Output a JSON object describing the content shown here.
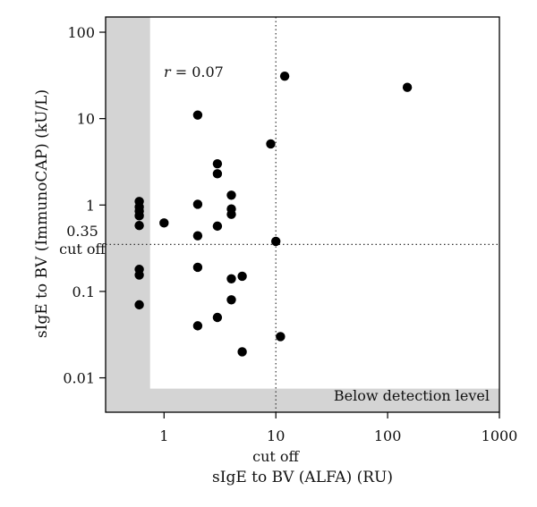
{
  "chart_data": {
    "type": "scatter",
    "x_scale": "log",
    "y_scale": "log",
    "xlim": [
      0.3,
      1000
    ],
    "ylim": [
      0.004,
      150
    ],
    "x_ticks": [
      {
        "value": 1,
        "label": "1"
      },
      {
        "value": 10,
        "label": "10"
      },
      {
        "value": 100,
        "label": "100"
      },
      {
        "value": 1000,
        "label": "1000"
      }
    ],
    "y_ticks": [
      {
        "value": 0.01,
        "label": "0.01"
      },
      {
        "value": 0.1,
        "label": "0.1"
      },
      {
        "value": 1,
        "label": "1"
      },
      {
        "value": 10,
        "label": "10"
      },
      {
        "value": 100,
        "label": "100"
      }
    ],
    "xlabel": "sIgE to BV (ALFA) (RU)",
    "ylabel": "sIgE to BV (ImmunoCAP) (kU/L)",
    "annotations": {
      "r_label": "r = 0.07",
      "x_cutoff_label": "cut off",
      "y_cutoff_value_label": "0.35",
      "y_cutoff_label": "cut off",
      "below_detection": "Below detection level"
    },
    "reference_lines": {
      "x_cutoff": 10,
      "y_cutoff": 0.35
    },
    "detection_region": {
      "x_below": 0.75,
      "y_below": 0.0075
    },
    "grid": false,
    "legend": "none",
    "colors": {
      "points": "#000000",
      "shade": "#d4d4d4",
      "frame": "#000000"
    },
    "points": [
      {
        "x": 0.6,
        "y": 1.1
      },
      {
        "x": 0.6,
        "y": 0.95
      },
      {
        "x": 0.6,
        "y": 0.85
      },
      {
        "x": 0.6,
        "y": 0.75
      },
      {
        "x": 0.6,
        "y": 0.58
      },
      {
        "x": 0.6,
        "y": 0.18
      },
      {
        "x": 0.6,
        "y": 0.155
      },
      {
        "x": 0.6,
        "y": 0.07
      },
      {
        "x": 1,
        "y": 0.62
      },
      {
        "x": 2,
        "y": 11
      },
      {
        "x": 2,
        "y": 1.02
      },
      {
        "x": 2,
        "y": 0.44
      },
      {
        "x": 2,
        "y": 0.19
      },
      {
        "x": 2,
        "y": 0.04
      },
      {
        "x": 3,
        "y": 3.0
      },
      {
        "x": 3,
        "y": 2.3
      },
      {
        "x": 3,
        "y": 0.57
      },
      {
        "x": 3,
        "y": 0.05
      },
      {
        "x": 4,
        "y": 1.3
      },
      {
        "x": 4,
        "y": 0.9
      },
      {
        "x": 4,
        "y": 0.78
      },
      {
        "x": 4,
        "y": 0.14
      },
      {
        "x": 4,
        "y": 0.08
      },
      {
        "x": 5,
        "y": 0.15
      },
      {
        "x": 5,
        "y": 0.02
      },
      {
        "x": 9,
        "y": 5.1
      },
      {
        "x": 10,
        "y": 0.38
      },
      {
        "x": 11,
        "y": 0.03
      },
      {
        "x": 12,
        "y": 31
      },
      {
        "x": 150,
        "y": 23
      }
    ]
  }
}
